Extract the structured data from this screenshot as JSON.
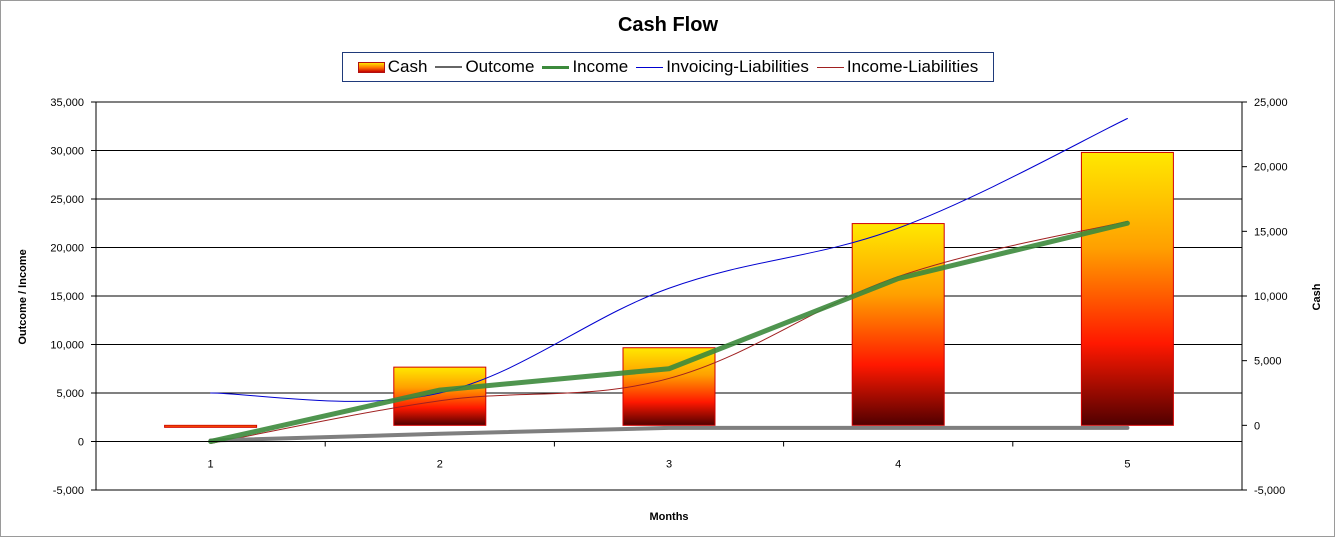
{
  "chart_data": {
    "type": "bar",
    "title": "Cash Flow",
    "xlabel": "Months",
    "ylabel_left": "Outcome / Income",
    "ylabel_right": "Cash",
    "categories": [
      "1",
      "2",
      "3",
      "4",
      "5"
    ],
    "ylim_left": [
      -5000,
      35000
    ],
    "ylim_right": [
      -5000,
      25000
    ],
    "yticks_left": [
      "-5,000",
      "0",
      "5,000",
      "10,000",
      "15,000",
      "20,000",
      "25,000",
      "30,000",
      "35,000"
    ],
    "yticks_right": [
      "-5,000",
      "0",
      "5,000",
      "10,000",
      "15,000",
      "20,000",
      "25,000"
    ],
    "ytick_values_left": [
      -5000,
      0,
      5000,
      10000,
      15000,
      20000,
      25000,
      30000,
      35000
    ],
    "ytick_values_right": [
      -5000,
      0,
      5000,
      10000,
      15000,
      20000,
      25000
    ],
    "grid": true,
    "legend_position": "top",
    "series": [
      {
        "name": "Cash",
        "type": "bar",
        "axis": "right",
        "values": [
          -50,
          4500,
          6000,
          15600,
          21100
        ],
        "color": "#ff6a00"
      },
      {
        "name": "Outcome",
        "type": "line",
        "axis": "left",
        "values": [
          100,
          800,
          1400,
          1400,
          1400
        ],
        "color": "#7f7f7f"
      },
      {
        "name": "Income",
        "type": "line",
        "axis": "left",
        "values": [
          0,
          5300,
          7500,
          16800,
          22500
        ],
        "color": "#3c8a3c"
      },
      {
        "name": "Invoicing-Liabilities",
        "type": "line",
        "axis": "left",
        "values": [
          5000,
          5000,
          15800,
          22000,
          33300
        ],
        "color": "#0000d0"
      },
      {
        "name": "Income-Liabilities",
        "type": "line",
        "axis": "left",
        "values": [
          -200,
          4200,
          6500,
          17000,
          22700
        ],
        "color": "#a02020"
      }
    ]
  }
}
